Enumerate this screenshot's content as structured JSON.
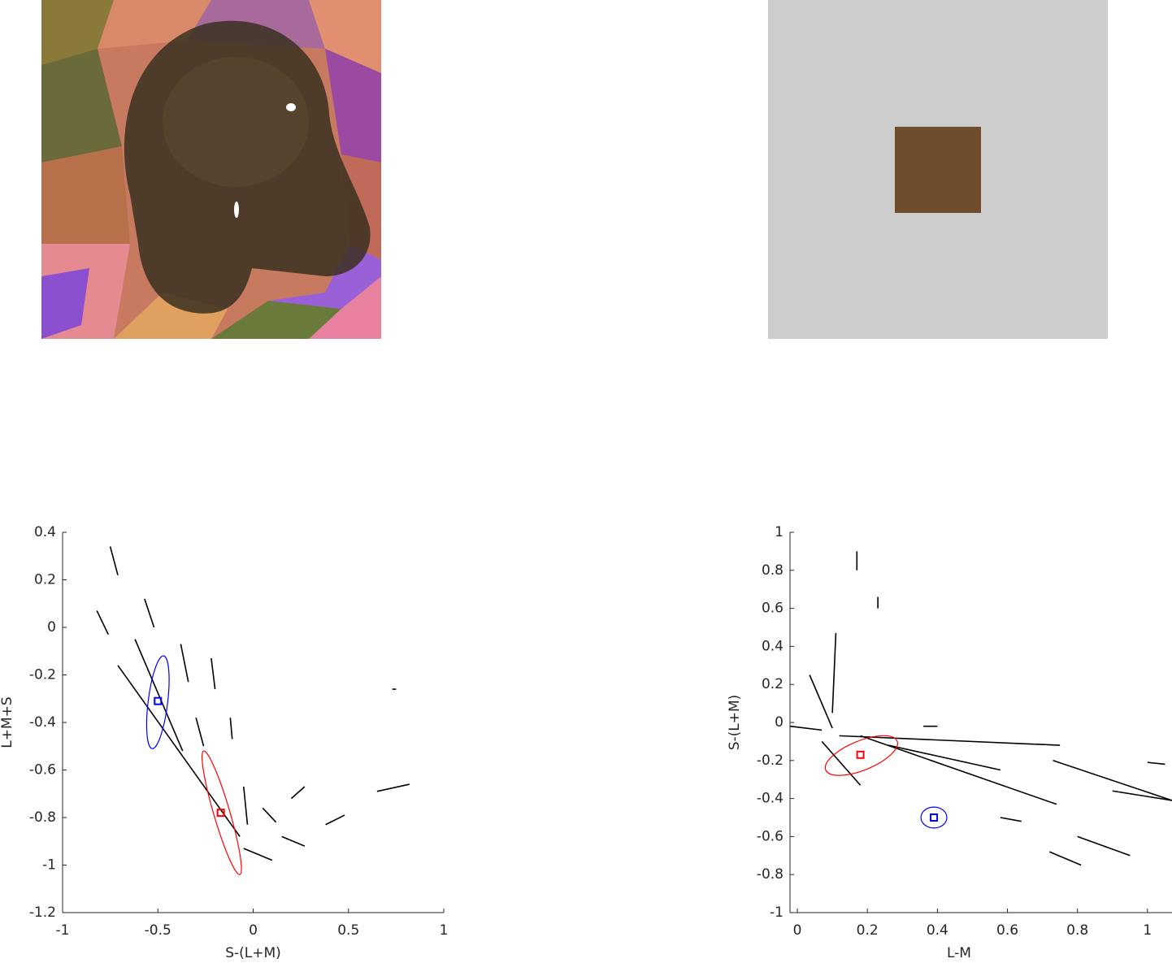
{
  "chart_data": [
    {
      "type": "line",
      "xlabel": "S-(L+M)",
      "ylabel": "L+M+S",
      "xlim": [
        -1,
        1
      ],
      "ylim": [
        -1.2,
        0.4
      ],
      "xticks": [
        -1,
        -0.5,
        0,
        0.5,
        1
      ],
      "yticks": [
        -1.2,
        -1,
        -0.8,
        -0.6,
        -0.4,
        -0.2,
        0,
        0.2,
        0.4
      ],
      "lines": [
        {
          "x": [
            -0.75,
            -0.71
          ],
          "y": [
            0.34,
            0.22
          ]
        },
        {
          "x": [
            -0.82,
            -0.76
          ],
          "y": [
            0.07,
            -0.03
          ]
        },
        {
          "x": [
            -0.57,
            -0.52
          ],
          "y": [
            0.12,
            0.0
          ]
        },
        {
          "x": [
            -0.71,
            -0.07
          ],
          "y": [
            -0.16,
            -0.88
          ]
        },
        {
          "x": [
            -0.62,
            -0.37
          ],
          "y": [
            -0.05,
            -0.52
          ]
        },
        {
          "x": [
            -0.38,
            -0.34
          ],
          "y": [
            -0.07,
            -0.23
          ]
        },
        {
          "x": [
            -0.22,
            -0.2
          ],
          "y": [
            -0.13,
            -0.26
          ]
        },
        {
          "x": [
            -0.12,
            -0.11
          ],
          "y": [
            -0.38,
            -0.47
          ]
        },
        {
          "x": [
            -0.3,
            -0.26
          ],
          "y": [
            -0.38,
            -0.5
          ]
        },
        {
          "x": [
            -0.05,
            -0.03
          ],
          "y": [
            -0.67,
            -0.83
          ]
        },
        {
          "x": [
            0.05,
            0.12
          ],
          "y": [
            -0.76,
            -0.82
          ]
        },
        {
          "x": [
            0.15,
            0.27
          ],
          "y": [
            -0.88,
            -0.92
          ]
        },
        {
          "x": [
            -0.05,
            0.1
          ],
          "y": [
            -0.93,
            -0.98
          ]
        },
        {
          "x": [
            0.2,
            0.27
          ],
          "y": [
            -0.72,
            -0.67
          ]
        },
        {
          "x": [
            0.38,
            0.48
          ],
          "y": [
            -0.83,
            -0.79
          ]
        },
        {
          "x": [
            0.65,
            0.82
          ],
          "y": [
            -0.69,
            -0.66
          ]
        },
        {
          "x": [
            0.73,
            0.75
          ],
          "y": [
            -0.26,
            -0.26
          ]
        }
      ],
      "ellipses": [
        {
          "x": [
            -0.47,
            -0.53
          ],
          "y": [
            -0.12,
            -0.51
          ],
          "minor": 0.041,
          "color": "#0000ff"
        },
        {
          "x": [
            -0.26,
            -0.07
          ],
          "y": [
            -0.52,
            -1.04
          ],
          "minor": 0.034,
          "color": "#ff0000"
        }
      ],
      "markers": [
        {
          "x": -0.5,
          "y": -0.31,
          "color": "#0000ff"
        },
        {
          "x": -0.17,
          "y": -0.78,
          "color": "#ff0000"
        }
      ]
    },
    {
      "type": "line",
      "xlabel": "L-M",
      "ylabel": "S-(L+M)",
      "xlim": [
        -0.021,
        1.07
      ],
      "ylim": [
        -1,
        1
      ],
      "xticks": [
        0,
        0.2,
        0.4,
        0.6,
        0.8,
        1
      ],
      "yticks": [
        -1,
        -0.8,
        -0.6,
        -0.4,
        -0.2,
        0,
        0.2,
        0.4,
        0.6,
        0.8,
        1
      ],
      "lines": [
        {
          "x": [
            0.12,
            0.75
          ],
          "y": [
            -0.07,
            -0.12
          ]
        },
        {
          "x": [
            0.18,
            0.74
          ],
          "y": [
            -0.07,
            -0.43
          ]
        },
        {
          "x": [
            0.26,
            0.58
          ],
          "y": [
            -0.12,
            -0.25
          ]
        },
        {
          "x": [
            0.07,
            0.18
          ],
          "y": [
            -0.1,
            -0.33
          ]
        },
        {
          "x": [
            0.73,
            1.07
          ],
          "y": [
            -0.2,
            -0.41
          ]
        },
        {
          "x": [
            0.9,
            1.07
          ],
          "y": [
            -0.36,
            -0.41
          ]
        },
        {
          "x": [
            0.8,
            0.95
          ],
          "y": [
            -0.6,
            -0.7
          ]
        },
        {
          "x": [
            0.72,
            0.81
          ],
          "y": [
            -0.68,
            -0.75
          ]
        },
        {
          "x": [
            0.11,
            0.1
          ],
          "y": [
            0.47,
            0.05
          ]
        },
        {
          "x": [
            0.17,
            0.17
          ],
          "y": [
            0.9,
            0.8
          ]
        },
        {
          "x": [
            0.23,
            0.23
          ],
          "y": [
            0.66,
            0.6
          ]
        },
        {
          "x": [
            0.035,
            0.1
          ],
          "y": [
            0.25,
            -0.03
          ]
        },
        {
          "x": [
            -0.02,
            0.07
          ],
          "y": [
            -0.02,
            -0.04
          ]
        },
        {
          "x": [
            1.0,
            1.05
          ],
          "y": [
            -0.21,
            -0.22
          ]
        },
        {
          "x": [
            0.36,
            0.4
          ],
          "y": [
            -0.02,
            -0.02
          ]
        },
        {
          "x": [
            0.58,
            0.64
          ],
          "y": [
            -0.5,
            -0.52
          ]
        }
      ],
      "ellipses": [
        {
          "x": [
            0.081,
            0.285
          ],
          "y": [
            -0.25,
            -0.098
          ],
          "minor": 0.077,
          "color": "#ff0000"
        },
        {
          "x": [
            0.353,
            0.427
          ],
          "y": [
            -0.5,
            -0.5
          ],
          "minor": 0.055,
          "color": "#0000ff"
        }
      ],
      "markers": [
        {
          "x": 0.18,
          "y": -0.17,
          "color": "#ff0000"
        },
        {
          "x": 0.39,
          "y": -0.5,
          "color": "#0000ff"
        }
      ]
    }
  ]
}
